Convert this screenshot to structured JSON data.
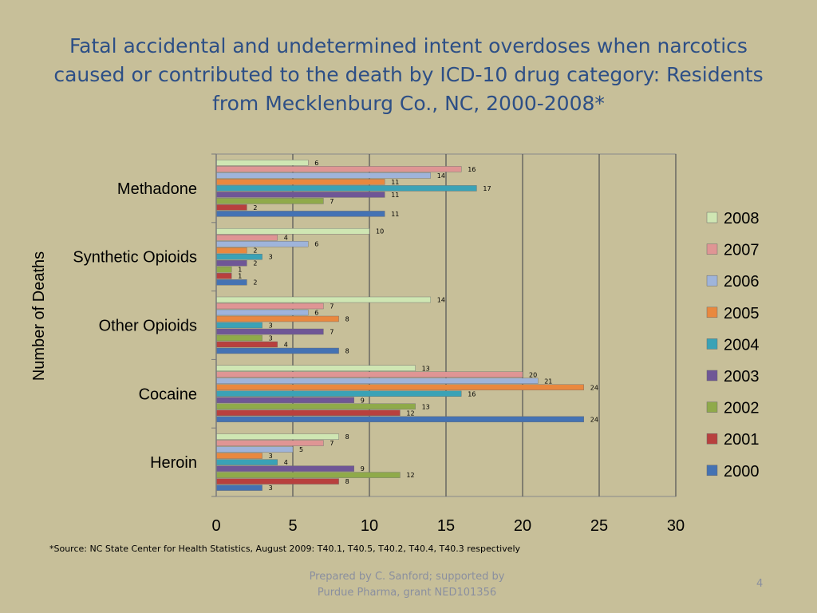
{
  "slide": {
    "title": "Fatal accidental and undetermined intent overdoses when narcotics caused or contributed to the death by ICD-10 drug category: Residents from Mecklenburg Co., NC, 2000-2008*",
    "footnote": "*Source: NC State Center for Health Statistics, August 2009: T40.1, T40.5, T40.2, T40.4, T40.3 respectively",
    "credit_line1": "Prepared by C. Sanford; supported by",
    "credit_line2": "Purdue Pharma, grant NED101356",
    "page_number": "4"
  },
  "chart_data": {
    "type": "bar",
    "orientation": "horizontal",
    "title": "",
    "xlabel": "",
    "ylabel": "Number of Deaths",
    "xlim": [
      0,
      30
    ],
    "xticks": [
      "0",
      "5",
      "10",
      "15",
      "20",
      "25",
      "30"
    ],
    "grid": "vertical",
    "legend_placement": "right",
    "categories": [
      "Methadone",
      "Synthetic Opioids",
      "Other Opioids",
      "Cocaine",
      "Heroin"
    ],
    "series": [
      {
        "name": "2008",
        "color": "#cfe6b3",
        "values": [
          6,
          10,
          14,
          13,
          8
        ]
      },
      {
        "name": "2007",
        "color": "#df9594",
        "values": [
          16,
          4,
          7,
          20,
          7
        ]
      },
      {
        "name": "2006",
        "color": "#9fb4da",
        "values": [
          14,
          6,
          6,
          21,
          5
        ]
      },
      {
        "name": "2005",
        "color": "#e9883f",
        "values": [
          11,
          2,
          8,
          24,
          3
        ]
      },
      {
        "name": "2004",
        "color": "#3aa2b6",
        "values": [
          17,
          3,
          3,
          16,
          4
        ]
      },
      {
        "name": "2003",
        "color": "#6f5696",
        "values": [
          11,
          2,
          7,
          9,
          9
        ]
      },
      {
        "name": "2002",
        "color": "#8faa4a",
        "values": [
          7,
          1,
          3,
          13,
          12
        ]
      },
      {
        "name": "2001",
        "color": "#b8403e",
        "values": [
          2,
          1,
          4,
          12,
          8
        ]
      },
      {
        "name": "2000",
        "color": "#4472b3",
        "values": [
          11,
          2,
          8,
          24,
          3
        ]
      }
    ]
  }
}
